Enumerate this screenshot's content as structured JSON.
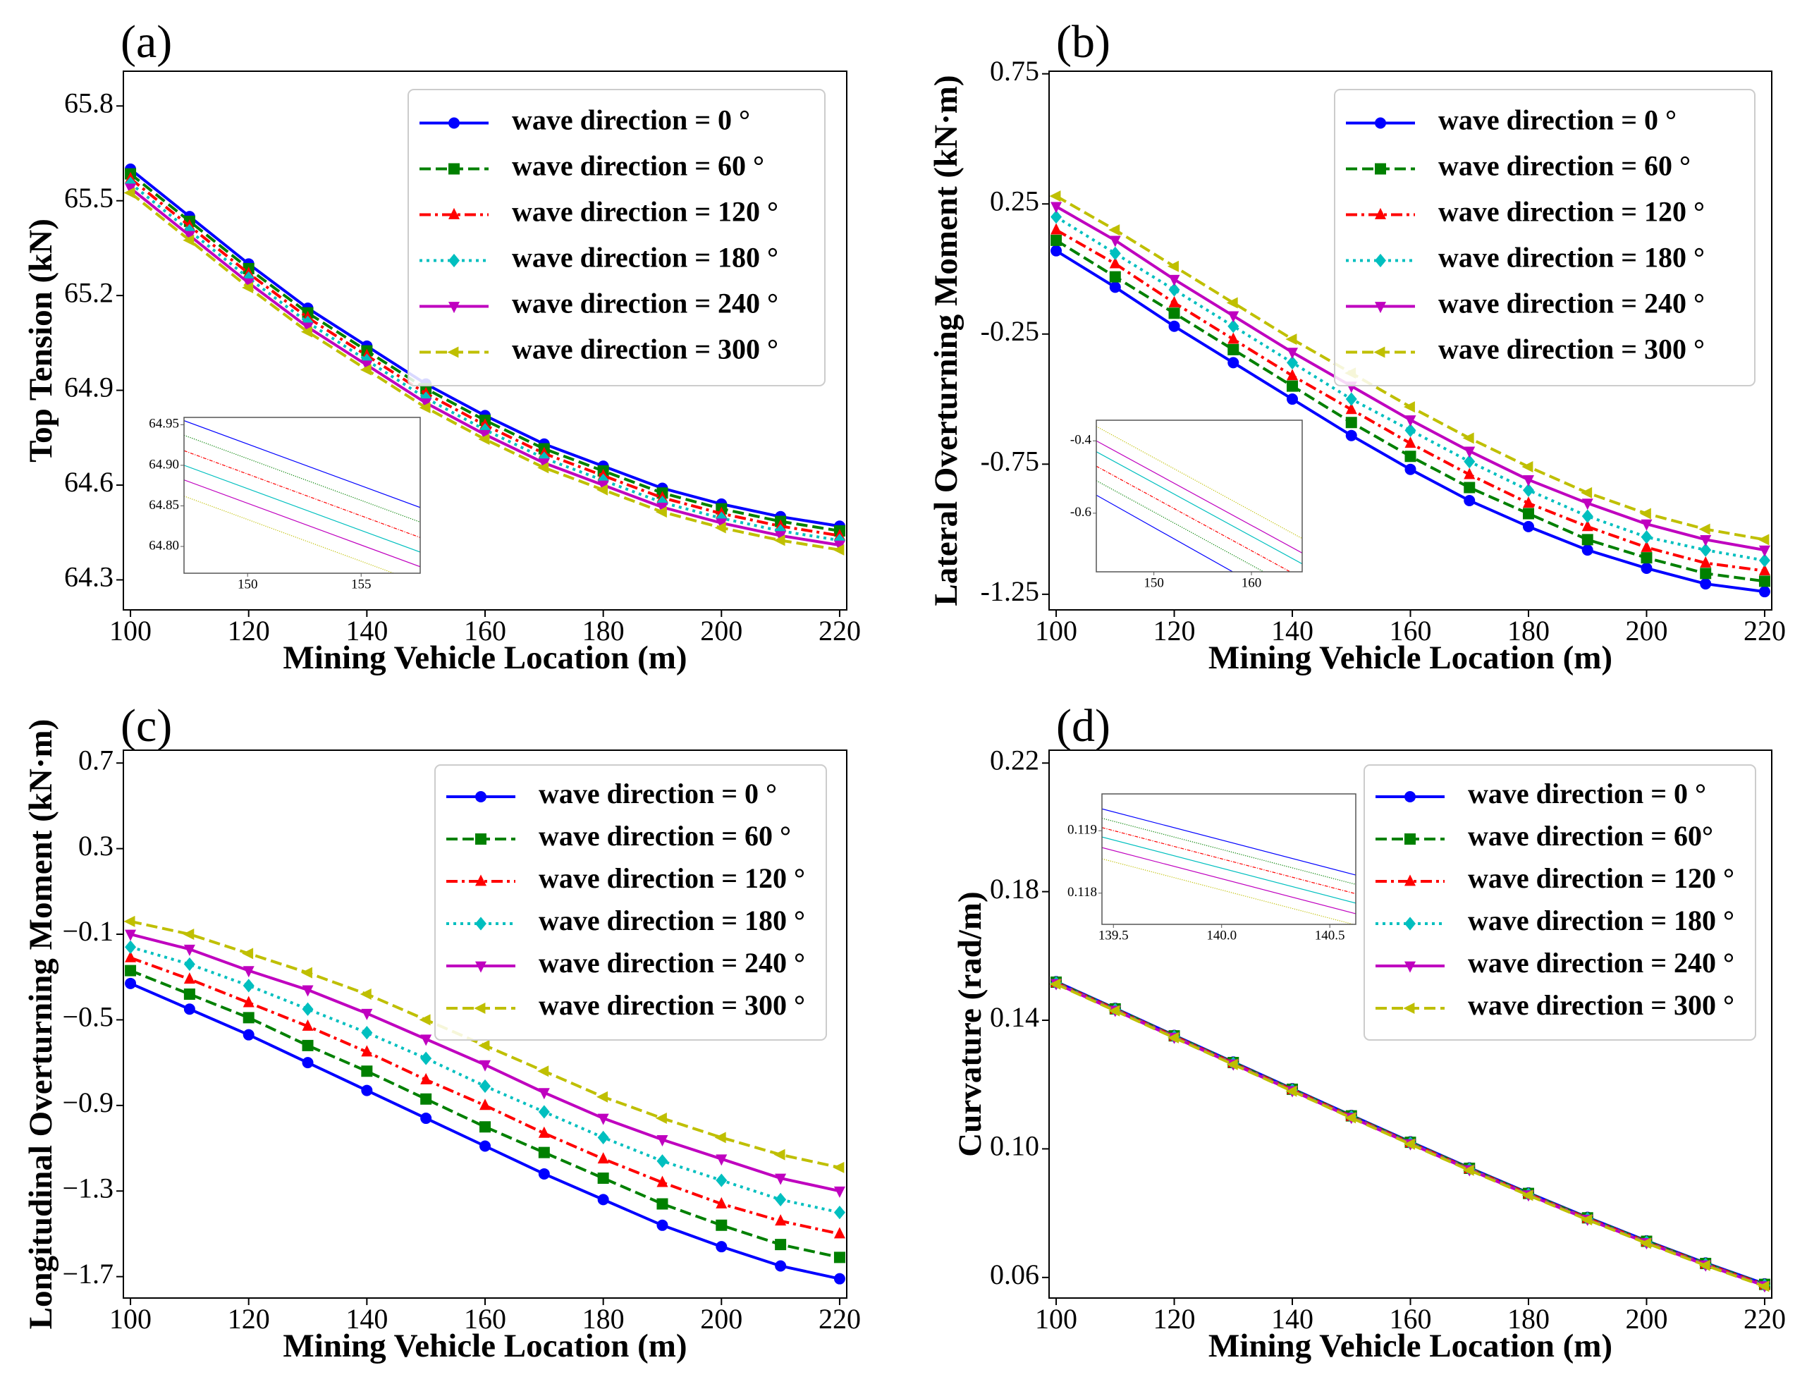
{
  "chart_data": [
    {
      "type": "line",
      "title": "(a)",
      "xlabel": "Mining Vehicle Location (m)",
      "ylabel": "Top Tension (kN)",
      "x": [
        100,
        110,
        120,
        130,
        140,
        150,
        160,
        170,
        180,
        190,
        200,
        210,
        220
      ],
      "xlim": [
        98.8,
        221.2
      ],
      "xticks": [
        100,
        120,
        140,
        160,
        180,
        200,
        220
      ],
      "ylim": [
        64.205,
        65.91
      ],
      "yticks": [
        64.3,
        64.6,
        64.9,
        65.2,
        65.5,
        65.8
      ],
      "legend": "upper right",
      "series": [
        {
          "name": "wave direction = 0 °",
          "color": "#0000ff",
          "linestyle": "solid",
          "marker": "o",
          "values": [
            65.6,
            65.45,
            65.3,
            65.16,
            65.04,
            64.92,
            64.82,
            64.73,
            64.66,
            64.59,
            64.54,
            64.5,
            64.47
          ]
        },
        {
          "name": "wave direction = 60 °",
          "color": "#008000",
          "linestyle": "dashed",
          "marker": "s",
          "values": [
            65.585,
            65.435,
            65.285,
            65.145,
            65.025,
            64.905,
            64.805,
            64.715,
            64.645,
            64.575,
            64.525,
            64.485,
            64.455
          ]
        },
        {
          "name": "wave direction = 120 °",
          "color": "#ff0000",
          "linestyle": "dashdot",
          "marker": "^",
          "values": [
            65.57,
            65.42,
            65.27,
            65.13,
            65.01,
            64.89,
            64.79,
            64.7,
            64.63,
            64.56,
            64.51,
            64.47,
            64.44
          ]
        },
        {
          "name": "wave direction = 180 °",
          "color": "#00bfbf",
          "linestyle": "dotted",
          "marker": "D",
          "values": [
            65.555,
            65.405,
            65.255,
            65.115,
            64.995,
            64.875,
            64.775,
            64.685,
            64.615,
            64.545,
            64.495,
            64.455,
            64.425
          ]
        },
        {
          "name": "wave direction = 240 °",
          "color": "#bf00bf",
          "linestyle": "solid",
          "marker": "v",
          "values": [
            65.54,
            65.39,
            65.24,
            65.1,
            64.98,
            64.86,
            64.76,
            64.67,
            64.6,
            64.53,
            64.48,
            64.44,
            64.41
          ]
        },
        {
          "name": "wave direction = 300 °",
          "color": "#bfbf00",
          "linestyle": "dashed",
          "marker": "<",
          "values": [
            65.525,
            65.375,
            65.225,
            65.085,
            64.965,
            64.845,
            64.745,
            64.655,
            64.585,
            64.515,
            64.465,
            64.425,
            64.395
          ]
        }
      ],
      "inset": {
        "x": [
          147.2,
          157.6
        ],
        "xlim": [
          147.2,
          157.6
        ],
        "xticks": [
          150,
          155
        ],
        "ylim": [
          64.767,
          64.959
        ],
        "yticks": [
          {
            "value": 64.8,
            "label": "64.80"
          },
          64.85,
          {
            "value": 64.9,
            "label": "64.90"
          },
          64.95
        ],
        "series": [
          {
            "color": "#0000ff",
            "linestyle": "solid",
            "values": [
              64.955,
              64.848
            ]
          },
          {
            "color": "#008000",
            "linestyle": "dotted",
            "values": [
              64.937,
              64.83
            ]
          },
          {
            "color": "#ff0000",
            "linestyle": "dashdot",
            "values": [
              64.918,
              64.811
            ]
          },
          {
            "color": "#00bfbf",
            "linestyle": "solid",
            "values": [
              64.9,
              64.793
            ]
          },
          {
            "color": "#bf00bf",
            "linestyle": "solid",
            "values": [
              64.882,
              64.775
            ]
          },
          {
            "color": "#bfbf00",
            "linestyle": "dotted",
            "values": [
              64.862,
              64.755
            ]
          }
        ]
      }
    },
    {
      "type": "line",
      "title": "(b)",
      "xlabel": "Mining Vehicle Location (m)",
      "ylabel": "Lateral Overturning Moment (kN·m)",
      "x": [
        100,
        110,
        120,
        130,
        140,
        150,
        160,
        170,
        180,
        190,
        200,
        210,
        220
      ],
      "xlim": [
        98.8,
        221.2
      ],
      "xticks": [
        100,
        120,
        140,
        160,
        180,
        200,
        220
      ],
      "ylim": [
        -1.31,
        0.76
      ],
      "yticks": [
        -1.25,
        -0.75,
        -0.25,
        0.25,
        0.75
      ],
      "legend": "upper right",
      "series": [
        {
          "name": "wave direction = 0 °",
          "color": "#0000ff",
          "linestyle": "solid",
          "marker": "o",
          "values": [
            0.07,
            -0.07,
            -0.22,
            -0.36,
            -0.5,
            -0.64,
            -0.77,
            -0.89,
            -0.99,
            -1.08,
            -1.15,
            -1.21,
            -1.24
          ]
        },
        {
          "name": "wave direction = 60 °",
          "color": "#008000",
          "linestyle": "dashed",
          "marker": "s",
          "values": [
            0.11,
            -0.03,
            -0.17,
            -0.31,
            -0.45,
            -0.59,
            -0.72,
            -0.84,
            -0.94,
            -1.04,
            -1.11,
            -1.17,
            -1.2
          ]
        },
        {
          "name": "wave direction = 120 °",
          "color": "#ff0000",
          "linestyle": "dashdot",
          "marker": "^",
          "values": [
            0.15,
            0.02,
            -0.13,
            -0.27,
            -0.41,
            -0.54,
            -0.67,
            -0.79,
            -0.9,
            -0.99,
            -1.07,
            -1.13,
            -1.16
          ]
        },
        {
          "name": "wave direction = 180 °",
          "color": "#00bfbf",
          "linestyle": "dotted",
          "marker": "D",
          "values": [
            0.2,
            0.06,
            -0.08,
            -0.22,
            -0.36,
            -0.5,
            -0.62,
            -0.74,
            -0.85,
            -0.95,
            -1.03,
            -1.08,
            -1.12
          ]
        },
        {
          "name": "wave direction = 240 °",
          "color": "#bf00bf",
          "linestyle": "solid",
          "marker": "v",
          "values": [
            0.24,
            0.11,
            -0.04,
            -0.18,
            -0.32,
            -0.45,
            -0.58,
            -0.7,
            -0.81,
            -0.9,
            -0.98,
            -1.04,
            -1.08
          ]
        },
        {
          "name": "wave direction = 300 °",
          "color": "#bfbf00",
          "linestyle": "dashed",
          "marker": "<",
          "values": [
            0.28,
            0.15,
            0.01,
            -0.13,
            -0.27,
            -0.4,
            -0.53,
            -0.65,
            -0.76,
            -0.86,
            -0.94,
            -1.0,
            -1.04
          ]
        }
      ],
      "inset": {
        "x": [
          144.1,
          165.2
        ],
        "xlim": [
          144.1,
          165.2
        ],
        "xticks": [
          150,
          160
        ],
        "ylim": [
          -0.762,
          -0.343
        ],
        "yticks": [
          -0.6,
          -0.4
        ],
        "series": [
          {
            "color": "#0000ff",
            "linestyle": "solid",
            "values": [
              -0.55,
              -0.87
            ]
          },
          {
            "color": "#008000",
            "linestyle": "dotted",
            "values": [
              -0.51,
              -0.82
            ]
          },
          {
            "color": "#ff0000",
            "linestyle": "dashdot",
            "values": [
              -0.47,
              -0.78
            ]
          },
          {
            "color": "#00bfbf",
            "linestyle": "solid",
            "values": [
              -0.43,
              -0.74
            ]
          },
          {
            "color": "#bf00bf",
            "linestyle": "solid",
            "values": [
              -0.4,
              -0.71
            ]
          },
          {
            "color": "#bfbf00",
            "linestyle": "dotted",
            "values": [
              -0.36,
              -0.67
            ]
          }
        ]
      }
    },
    {
      "type": "line",
      "title": "(c)",
      "xlabel": "Mining Vehicle Location (m)",
      "ylabel": "Longitudinal Overturning Moment (kN·m)",
      "x": [
        100,
        110,
        120,
        130,
        140,
        150,
        160,
        170,
        180,
        190,
        200,
        210,
        220
      ],
      "xlim": [
        98.8,
        221.2
      ],
      "xticks": [
        100,
        120,
        140,
        160,
        180,
        200,
        220
      ],
      "ylim": [
        -1.8,
        0.76
      ],
      "yticks": [
        {
          "value": -1.7,
          "label": "−1.7"
        },
        {
          "value": -1.3,
          "label": "−1.3"
        },
        {
          "value": -0.9,
          "label": "−0.9"
        },
        {
          "value": -0.5,
          "label": "−0.5"
        },
        {
          "value": -0.1,
          "label": "−0.1"
        },
        0.3,
        0.7
      ],
      "legend": "upper right",
      "series": [
        {
          "name": "wave direction = 0 °",
          "color": "#0000ff",
          "linestyle": "solid",
          "marker": "o",
          "values": [
            -0.33,
            -0.45,
            -0.57,
            -0.7,
            -0.83,
            -0.96,
            -1.09,
            -1.22,
            -1.34,
            -1.46,
            -1.56,
            -1.65,
            -1.71
          ]
        },
        {
          "name": "wave direction = 60 °",
          "color": "#008000",
          "linestyle": "dashed",
          "marker": "s",
          "values": [
            -0.27,
            -0.38,
            -0.49,
            -0.62,
            -0.74,
            -0.87,
            -1.0,
            -1.12,
            -1.24,
            -1.36,
            -1.46,
            -1.55,
            -1.61
          ]
        },
        {
          "name": "wave direction = 120 °",
          "color": "#ff0000",
          "linestyle": "dashdot",
          "marker": "^",
          "values": [
            -0.21,
            -0.31,
            -0.42,
            -0.53,
            -0.65,
            -0.78,
            -0.9,
            -1.03,
            -1.15,
            -1.26,
            -1.36,
            -1.44,
            -1.5
          ]
        },
        {
          "name": "wave direction = 180 °",
          "color": "#00bfbf",
          "linestyle": "dotted",
          "marker": "D",
          "values": [
            -0.16,
            -0.24,
            -0.34,
            -0.45,
            -0.56,
            -0.68,
            -0.81,
            -0.93,
            -1.05,
            -1.16,
            -1.25,
            -1.34,
            -1.4
          ]
        },
        {
          "name": "wave direction = 240 °",
          "color": "#bf00bf",
          "linestyle": "solid",
          "marker": "v",
          "values": [
            -0.1,
            -0.17,
            -0.27,
            -0.36,
            -0.47,
            -0.59,
            -0.71,
            -0.84,
            -0.96,
            -1.06,
            -1.15,
            -1.24,
            -1.3
          ]
        },
        {
          "name": "wave direction = 300 °",
          "color": "#bfbf00",
          "linestyle": "dashed",
          "marker": "<",
          "values": [
            -0.04,
            -0.1,
            -0.19,
            -0.28,
            -0.38,
            -0.5,
            -0.62,
            -0.74,
            -0.86,
            -0.96,
            -1.05,
            -1.13,
            -1.19
          ]
        }
      ]
    },
    {
      "type": "line",
      "title": "(d)",
      "xlabel": "Mining Vehicle Location (m)",
      "ylabel": "Curvature (rad/m)",
      "x": [
        100,
        110,
        120,
        130,
        140,
        150,
        160,
        170,
        180,
        190,
        200,
        210,
        220
      ],
      "xlim": [
        98.8,
        221.2
      ],
      "xticks": [
        100,
        120,
        140,
        160,
        180,
        200,
        220
      ],
      "ylim": [
        0.0536,
        0.224
      ],
      "yticks": [
        0.06,
        {
          "value": 0.1,
          "label": "0.10"
        },
        0.14,
        0.18,
        0.22
      ],
      "legend": "upper right",
      "series": [
        {
          "name": "wave direction = 0 °",
          "color": "#0000ff",
          "linestyle": "solid",
          "marker": "o",
          "values": [
            0.152,
            0.1437,
            0.1353,
            0.127,
            0.1187,
            0.1104,
            0.1022,
            0.0941,
            0.0863,
            0.0787,
            0.0714,
            0.0645,
            0.058
          ]
        },
        {
          "name": "wave direction = 60°",
          "color": "#008000",
          "linestyle": "dashed",
          "marker": "s",
          "values": [
            0.15185,
            0.14355,
            0.13515,
            0.12685,
            0.11855,
            0.11025,
            0.10205,
            0.09395,
            0.08615,
            0.07855,
            0.07125,
            0.06435,
            0.05785
          ]
        },
        {
          "name": "wave direction = 120 °",
          "color": "#ff0000",
          "linestyle": "dashdot",
          "marker": "^",
          "values": [
            0.1517,
            0.1434,
            0.135,
            0.1267,
            0.1184,
            0.1101,
            0.1019,
            0.0938,
            0.086,
            0.0784,
            0.0711,
            0.0642,
            0.0577
          ]
        },
        {
          "name": "wave direction = 180 °",
          "color": "#00bfbf",
          "linestyle": "dotted",
          "marker": "D",
          "values": [
            0.15155,
            0.14325,
            0.13485,
            0.12655,
            0.11825,
            0.10995,
            0.10175,
            0.09365,
            0.08585,
            0.07825,
            0.07095,
            0.06405,
            0.05755
          ]
        },
        {
          "name": "wave direction = 240 °",
          "color": "#bf00bf",
          "linestyle": "solid",
          "marker": "v",
          "values": [
            0.1514,
            0.1431,
            0.1347,
            0.1264,
            0.1181,
            0.1098,
            0.1016,
            0.0935,
            0.0857,
            0.0781,
            0.0708,
            0.0639,
            0.0574
          ]
        },
        {
          "name": "wave direction = 300 °",
          "color": "#bfbf00",
          "linestyle": "dashed",
          "marker": "<",
          "values": [
            0.15125,
            0.14295,
            0.13455,
            0.12625,
            0.11795,
            0.10965,
            0.10145,
            0.09335,
            0.08555,
            0.07795,
            0.07065,
            0.06375,
            0.05725
          ]
        }
      ],
      "inset": {
        "x": [
          139.447,
          140.62
        ],
        "xlim": [
          139.447,
          140.62
        ],
        "xticks": [
          139.5,
          {
            "value": 140,
            "label": "140.0"
          },
          140.5
        ],
        "ylim": [
          0.1175,
          0.11959
        ],
        "yticks": [
          0.118,
          0.119
        ],
        "series": [
          {
            "color": "#0000ff",
            "linestyle": "solid",
            "values": [
              0.11935,
              0.11829
            ]
          },
          {
            "color": "#008000",
            "linestyle": "dotted",
            "values": [
              0.1192,
              0.11814
            ]
          },
          {
            "color": "#ff0000",
            "linestyle": "dashdot",
            "values": [
              0.11905,
              0.11799
            ]
          },
          {
            "color": "#00bfbf",
            "linestyle": "solid",
            "values": [
              0.1189,
              0.11784
            ]
          },
          {
            "color": "#bf00bf",
            "linestyle": "solid",
            "values": [
              0.11873,
              0.11767
            ]
          },
          {
            "color": "#bfbf00",
            "linestyle": "dotted",
            "values": [
              0.11855,
              0.11749
            ]
          }
        ]
      }
    }
  ]
}
